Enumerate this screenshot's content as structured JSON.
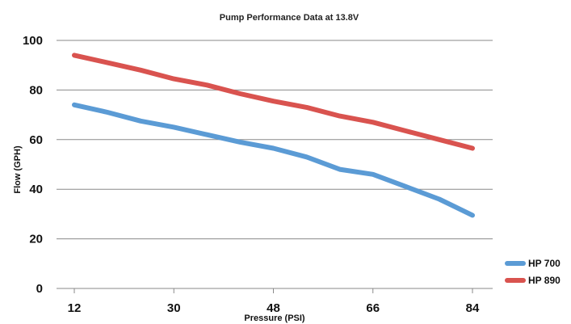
{
  "chart_data": {
    "type": "line",
    "title": "Pump Performance Data at 13.8V",
    "xlabel": "Pressure (PSI)",
    "ylabel": "Flow (GPH)",
    "x_ticks": [
      "12",
      "30",
      "48",
      "66",
      "84"
    ],
    "y_ticks": [
      "0",
      "20",
      "40",
      "60",
      "80",
      "100"
    ],
    "xlim": [
      12,
      84
    ],
    "ylim": [
      0,
      100
    ],
    "grid": true,
    "legend_position": "bottom-right",
    "series": [
      {
        "name": "HP 700",
        "color": "#5b9bd5",
        "points": [
          [
            12,
            74
          ],
          [
            18,
            71
          ],
          [
            24,
            67.5
          ],
          [
            30,
            65
          ],
          [
            36,
            62
          ],
          [
            42,
            59
          ],
          [
            48,
            56.5
          ],
          [
            54,
            53
          ],
          [
            60,
            48
          ],
          [
            66,
            46
          ],
          [
            72,
            41
          ],
          [
            78,
            36
          ],
          [
            84,
            29.5
          ]
        ]
      },
      {
        "name": "HP 890",
        "color": "#d9534f",
        "points": [
          [
            12,
            94
          ],
          [
            18,
            91
          ],
          [
            24,
            88
          ],
          [
            30,
            84.5
          ],
          [
            36,
            82
          ],
          [
            42,
            78.5
          ],
          [
            48,
            75.5
          ],
          [
            54,
            73
          ],
          [
            60,
            69.5
          ],
          [
            66,
            67
          ],
          [
            72,
            63.5
          ],
          [
            78,
            60
          ],
          [
            84,
            56.5
          ]
        ]
      }
    ]
  }
}
